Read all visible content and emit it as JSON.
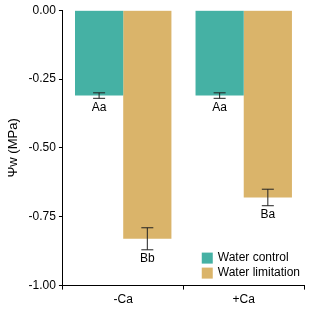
{
  "chart_data": {
    "type": "bar",
    "y_label": "Ψw (MPa)",
    "categories": [
      "-Ca",
      "+Ca"
    ],
    "series": [
      {
        "name": "Water control",
        "color": "#45b1a4",
        "values": [
          -0.31,
          -0.31
        ],
        "errors": [
          0.01,
          0.01
        ],
        "letters": [
          "Aa",
          "Aa"
        ]
      },
      {
        "name": "Water limitation",
        "color": "#dab46a",
        "values": [
          -0.83,
          -0.68
        ],
        "errors": [
          0.04,
          0.03
        ],
        "letters": [
          "Bb",
          "Ba"
        ]
      }
    ],
    "ylim": [
      -1,
      0
    ],
    "yticks": [
      {
        "value": -1,
        "label": "-1.00"
      },
      {
        "value": -0.75,
        "label": "-0.75"
      },
      {
        "value": -0.5,
        "label": "-0.50"
      },
      {
        "value": -0.25,
        "label": "-0.25"
      },
      {
        "value": 0,
        "label": "0.00"
      }
    ],
    "grid": false,
    "legend": "lower right"
  }
}
